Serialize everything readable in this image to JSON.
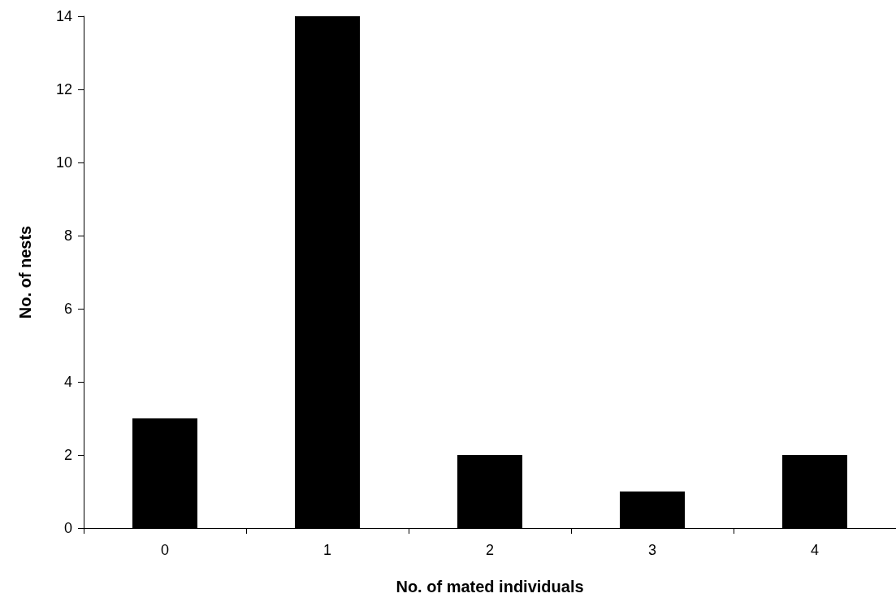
{
  "chart_data": {
    "type": "bar",
    "xlabel": "No. of mated individuals",
    "ylabel": "No. of nests",
    "categories": [
      "0",
      "1",
      "2",
      "3",
      "4"
    ],
    "values": [
      3,
      14,
      2,
      1,
      2
    ],
    "color": "#000000",
    "ylim": [
      0,
      14
    ],
    "yticks": [
      0,
      2,
      4,
      6,
      8,
      10,
      12,
      14
    ],
    "grid": false
  }
}
